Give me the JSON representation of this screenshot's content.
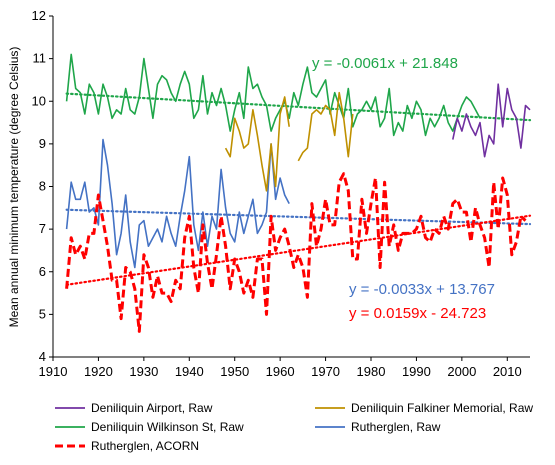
{
  "chart_data": {
    "type": "line",
    "ylabel": "Mean annual minimum temperature (degree Celsius)",
    "xlim": [
      1910,
      2015
    ],
    "ylim": [
      4,
      12
    ],
    "xticks": [
      1910,
      1920,
      1930,
      1940,
      1950,
      1960,
      1970,
      1980,
      1990,
      2000,
      2010
    ],
    "yticks": [
      4,
      5,
      6,
      7,
      8,
      9,
      10,
      11,
      12
    ],
    "grid": false,
    "legend_position": "bottom",
    "series": [
      {
        "name": "Deniliquin Airport, Raw",
        "color": "#7030A0",
        "style": "solid",
        "points": [
          [
            1998,
            9.1
          ],
          [
            1999,
            9.6
          ],
          [
            2000,
            9.3
          ],
          [
            2001,
            9.7
          ],
          [
            2002,
            9.4
          ],
          [
            2003,
            9.2
          ],
          [
            2004,
            9.5
          ],
          [
            2005,
            8.7
          ],
          [
            2006,
            9.2
          ],
          [
            2007,
            9.0
          ],
          [
            2008,
            10.4
          ],
          [
            2009,
            9.4
          ],
          [
            2010,
            10.3
          ],
          [
            2011,
            9.8
          ],
          [
            2012,
            9.6
          ],
          [
            2013,
            8.9
          ],
          [
            2014,
            9.9
          ],
          [
            2015,
            9.8
          ]
        ]
      },
      {
        "name": "Deniliquin Falkiner Memorial, Raw",
        "color": "#BF9000",
        "style": "solid",
        "segments": [
          [
            [
              1948,
              8.9
            ],
            [
              1949,
              8.7
            ],
            [
              1950,
              9.6
            ],
            [
              1951,
              9.3
            ],
            [
              1952,
              8.9
            ],
            [
              1953,
              9.0
            ],
            [
              1954,
              9.8
            ],
            [
              1955,
              9.2
            ],
            [
              1956,
              8.5
            ],
            [
              1957,
              7.9
            ],
            [
              1958,
              9.0
            ],
            [
              1959,
              8.0
            ],
            [
              1960,
              9.7
            ],
            [
              1961,
              10.1
            ],
            [
              1962,
              9.4
            ]
          ],
          [
            [
              1964,
              8.6
            ],
            [
              1965,
              8.8
            ],
            [
              1966,
              8.9
            ],
            [
              1967,
              9.7
            ],
            [
              1968,
              9.8
            ],
            [
              1969,
              9.7
            ],
            [
              1970,
              9.9
            ],
            [
              1971,
              9.8
            ],
            [
              1972,
              9.2
            ],
            [
              1973,
              10.2
            ],
            [
              1974,
              9.6
            ],
            [
              1975,
              8.7
            ],
            [
              1976,
              9.7
            ]
          ]
        ]
      },
      {
        "name": "Deniliquin Wilkinson St, Raw",
        "color": "#1FA64A",
        "style": "solid",
        "points": [
          [
            1913,
            10.0
          ],
          [
            1914,
            11.1
          ],
          [
            1915,
            10.3
          ],
          [
            1916,
            10.2
          ],
          [
            1917,
            9.7
          ],
          [
            1918,
            10.4
          ],
          [
            1919,
            10.2
          ],
          [
            1920,
            9.7
          ],
          [
            1921,
            10.4
          ],
          [
            1922,
            10.1
          ],
          [
            1923,
            9.6
          ],
          [
            1924,
            9.8
          ],
          [
            1925,
            9.7
          ],
          [
            1926,
            10.3
          ],
          [
            1927,
            9.8
          ],
          [
            1928,
            9.7
          ],
          [
            1929,
            10.1
          ],
          [
            1930,
            11.0
          ],
          [
            1931,
            10.3
          ],
          [
            1932,
            9.6
          ],
          [
            1933,
            10.4
          ],
          [
            1934,
            10.6
          ],
          [
            1935,
            10.5
          ],
          [
            1936,
            10.2
          ],
          [
            1937,
            10.0
          ],
          [
            1938,
            10.4
          ],
          [
            1939,
            10.7
          ],
          [
            1940,
            10.4
          ],
          [
            1941,
            9.6
          ],
          [
            1942,
            9.8
          ],
          [
            1943,
            10.6
          ],
          [
            1944,
            9.7
          ],
          [
            1945,
            10.2
          ],
          [
            1946,
            9.9
          ],
          [
            1947,
            10.3
          ],
          [
            1948,
            9.9
          ],
          [
            1949,
            9.3
          ],
          [
            1950,
            9.8
          ],
          [
            1951,
            10.2
          ],
          [
            1952,
            9.6
          ],
          [
            1953,
            10.8
          ],
          [
            1954,
            10.3
          ],
          [
            1955,
            10.4
          ],
          [
            1956,
            10.1
          ],
          [
            1957,
            9.9
          ],
          [
            1958,
            9.3
          ],
          [
            1959,
            9.6
          ],
          [
            1960,
            9.8
          ],
          [
            1961,
            10.0
          ],
          [
            1962,
            9.6
          ],
          [
            1963,
            10.2
          ],
          [
            1964,
            9.9
          ],
          [
            1965,
            10.4
          ],
          [
            1966,
            10.8
          ],
          [
            1967,
            10.2
          ],
          [
            1968,
            10.1
          ],
          [
            1969,
            10.3
          ],
          [
            1970,
            10.5
          ],
          [
            1971,
            9.7
          ],
          [
            1972,
            10.2
          ],
          [
            1973,
            9.9
          ],
          [
            1974,
            9.6
          ],
          [
            1975,
            10.3
          ],
          [
            1976,
            9.4
          ],
          [
            1977,
            9.7
          ],
          [
            1978,
            9.8
          ],
          [
            1979,
            10.0
          ],
          [
            1980,
            9.8
          ],
          [
            1981,
            10.1
          ],
          [
            1982,
            9.4
          ],
          [
            1983,
            9.6
          ],
          [
            1984,
            10.3
          ],
          [
            1985,
            9.2
          ],
          [
            1986,
            9.5
          ],
          [
            1987,
            9.3
          ],
          [
            1988,
            9.9
          ],
          [
            1989,
            9.6
          ],
          [
            1990,
            10.0
          ],
          [
            1991,
            9.8
          ],
          [
            1992,
            9.2
          ],
          [
            1993,
            9.6
          ],
          [
            1994,
            9.4
          ],
          [
            1995,
            9.6
          ],
          [
            1996,
            9.9
          ],
          [
            1997,
            9.5
          ],
          [
            1998,
            9.3
          ],
          [
            1999,
            9.6
          ],
          [
            2000,
            9.9
          ],
          [
            2001,
            10.1
          ],
          [
            2002,
            10.0
          ],
          [
            2003,
            9.8
          ],
          [
            2004,
            9.6
          ]
        ]
      },
      {
        "name": "Rutherglen, Raw",
        "color": "#4472C4",
        "style": "solid",
        "points": [
          [
            1913,
            7.0
          ],
          [
            1914,
            8.1
          ],
          [
            1915,
            7.7
          ],
          [
            1916,
            7.7
          ],
          [
            1917,
            8.1
          ],
          [
            1918,
            7.4
          ],
          [
            1919,
            7.5
          ],
          [
            1920,
            7.1
          ],
          [
            1921,
            9.1
          ],
          [
            1922,
            8.5
          ],
          [
            1923,
            7.6
          ],
          [
            1924,
            6.4
          ],
          [
            1925,
            6.9
          ],
          [
            1926,
            7.8
          ],
          [
            1927,
            6.7
          ],
          [
            1928,
            6.1
          ],
          [
            1929,
            7.1
          ],
          [
            1930,
            7.2
          ],
          [
            1931,
            6.6
          ],
          [
            1932,
            6.8
          ],
          [
            1933,
            7.0
          ],
          [
            1934,
            6.7
          ],
          [
            1935,
            7.3
          ],
          [
            1936,
            6.9
          ],
          [
            1937,
            6.6
          ],
          [
            1938,
            7.3
          ],
          [
            1939,
            7.9
          ],
          [
            1940,
            8.7
          ],
          [
            1941,
            7.1
          ],
          [
            1942,
            6.5
          ],
          [
            1943,
            7.4
          ],
          [
            1944,
            6.6
          ],
          [
            1945,
            7.3
          ],
          [
            1946,
            7.0
          ],
          [
            1947,
            8.4
          ],
          [
            1948,
            7.5
          ],
          [
            1949,
            6.9
          ],
          [
            1950,
            6.7
          ],
          [
            1951,
            7.4
          ],
          [
            1952,
            6.9
          ],
          [
            1953,
            7.3
          ],
          [
            1954,
            7.7
          ],
          [
            1955,
            6.9
          ],
          [
            1956,
            7.1
          ],
          [
            1957,
            7.4
          ],
          [
            1958,
            9.0
          ],
          [
            1959,
            7.7
          ],
          [
            1960,
            8.2
          ],
          [
            1961,
            7.8
          ],
          [
            1962,
            7.6
          ]
        ]
      },
      {
        "name": "Rutherglen, ACORN",
        "color": "#FF0000",
        "style": "dashed",
        "points": [
          [
            1913,
            5.6
          ],
          [
            1914,
            6.8
          ],
          [
            1915,
            6.4
          ],
          [
            1916,
            6.6
          ],
          [
            1917,
            6.3
          ],
          [
            1918,
            6.9
          ],
          [
            1919,
            6.9
          ],
          [
            1920,
            7.8
          ],
          [
            1921,
            7.2
          ],
          [
            1922,
            6.6
          ],
          [
            1923,
            5.8
          ],
          [
            1924,
            5.8
          ],
          [
            1925,
            4.9
          ],
          [
            1926,
            6.1
          ],
          [
            1927,
            6.0
          ],
          [
            1928,
            5.6
          ],
          [
            1929,
            4.6
          ],
          [
            1930,
            6.4
          ],
          [
            1931,
            6.1
          ],
          [
            1932,
            5.4
          ],
          [
            1933,
            5.9
          ],
          [
            1934,
            5.5
          ],
          [
            1935,
            5.5
          ],
          [
            1936,
            5.3
          ],
          [
            1937,
            5.8
          ],
          [
            1938,
            5.6
          ],
          [
            1939,
            6.8
          ],
          [
            1940,
            7.3
          ],
          [
            1941,
            6.1
          ],
          [
            1942,
            5.5
          ],
          [
            1943,
            7.1
          ],
          [
            1944,
            6.2
          ],
          [
            1945,
            5.6
          ],
          [
            1946,
            6.4
          ],
          [
            1947,
            7.3
          ],
          [
            1948,
            6.6
          ],
          [
            1949,
            5.6
          ],
          [
            1950,
            6.3
          ],
          [
            1951,
            6.0
          ],
          [
            1952,
            5.5
          ],
          [
            1953,
            5.8
          ],
          [
            1954,
            5.4
          ],
          [
            1955,
            6.3
          ],
          [
            1956,
            6.3
          ],
          [
            1957,
            5.0
          ],
          [
            1958,
            7.3
          ],
          [
            1959,
            6.5
          ],
          [
            1960,
            6.8
          ],
          [
            1961,
            7.0
          ],
          [
            1962,
            6.6
          ],
          [
            1963,
            6.1
          ],
          [
            1964,
            6.4
          ],
          [
            1965,
            6.1
          ],
          [
            1966,
            5.4
          ],
          [
            1967,
            7.6
          ],
          [
            1968,
            6.6
          ],
          [
            1969,
            7.0
          ],
          [
            1970,
            7.7
          ],
          [
            1971,
            7.1
          ],
          [
            1972,
            7.1
          ],
          [
            1973,
            8.1
          ],
          [
            1974,
            8.3
          ],
          [
            1975,
            7.9
          ],
          [
            1976,
            6.3
          ],
          [
            1977,
            6.3
          ],
          [
            1978,
            7.7
          ],
          [
            1979,
            6.9
          ],
          [
            1980,
            7.6
          ],
          [
            1981,
            8.2
          ],
          [
            1982,
            6.1
          ],
          [
            1983,
            8.1
          ],
          [
            1984,
            6.6
          ],
          [
            1985,
            7.1
          ],
          [
            1986,
            6.5
          ],
          [
            1987,
            6.9
          ],
          [
            1988,
            6.9
          ],
          [
            1989,
            6.9
          ],
          [
            1990,
            7.0
          ],
          [
            1991,
            7.3
          ],
          [
            1992,
            6.8
          ],
          [
            1993,
            6.7
          ],
          [
            1994,
            7.0
          ],
          [
            1995,
            6.9
          ],
          [
            1996,
            7.3
          ],
          [
            1997,
            7.0
          ],
          [
            1998,
            7.6
          ],
          [
            1999,
            7.7
          ],
          [
            2000,
            7.4
          ],
          [
            2001,
            7.4
          ],
          [
            2002,
            6.7
          ],
          [
            2003,
            7.5
          ],
          [
            2004,
            7.1
          ],
          [
            2005,
            6.8
          ],
          [
            2006,
            6.1
          ],
          [
            2007,
            8.1
          ],
          [
            2008,
            7.0
          ],
          [
            2009,
            8.2
          ],
          [
            2010,
            7.8
          ],
          [
            2011,
            6.4
          ],
          [
            2012,
            6.7
          ],
          [
            2013,
            7.3
          ],
          [
            2014,
            7.2
          ]
        ]
      }
    ],
    "trendlines": [
      {
        "series": "Deniliquin Wilkinson St, Raw",
        "color": "#1FA64A",
        "equation": "y = -0.0061x + 21.848",
        "slope": -0.0061,
        "intercept": 21.848,
        "x_range": [
          1913,
          2015
        ]
      },
      {
        "series": "Rutherglen, Raw",
        "color": "#4472C4",
        "equation": "y = -0.0033x + 13.767",
        "slope": -0.0033,
        "intercept": 13.767,
        "x_range": [
          1913,
          2015
        ]
      },
      {
        "series": "Rutherglen, ACORN",
        "color": "#FF0000",
        "equation": "y = 0.0159x - 24.723",
        "slope": 0.0159,
        "intercept": -24.723,
        "x_range": [
          1913,
          2015
        ]
      }
    ]
  }
}
